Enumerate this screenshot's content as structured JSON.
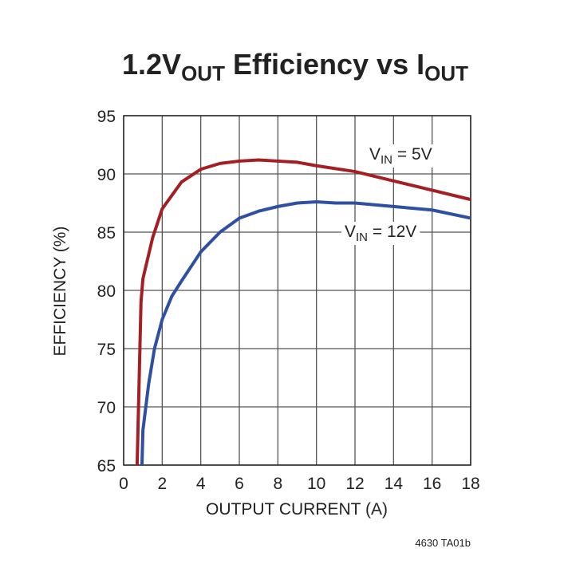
{
  "chart_data": {
    "type": "line",
    "title": [
      "1.2V",
      "OUT",
      " Efficiency vs I",
      "OUT"
    ],
    "x_label": "OUTPUT CURRENT (A)",
    "y_label": "EFFICIENCY (%)",
    "footnote": "4630 TA01b",
    "xlim": [
      0,
      18
    ],
    "xticks": [
      0,
      2,
      4,
      6,
      8,
      10,
      12,
      14,
      16,
      18
    ],
    "ylim": [
      65,
      95
    ],
    "yticks": [
      65,
      70,
      75,
      80,
      85,
      90,
      95
    ],
    "grid": true,
    "series": [
      {
        "name": [
          "V",
          "IN",
          " = 5V"
        ],
        "color": "#a31f24",
        "x": [
          0.7,
          0.8,
          0.9,
          1.0,
          1.5,
          2,
          3,
          4,
          5,
          6,
          7,
          8,
          9,
          10,
          12,
          14,
          16,
          18
        ],
        "values": [
          65,
          72,
          79,
          81,
          84.5,
          87,
          89.3,
          90.4,
          90.9,
          91.1,
          91.2,
          91.1,
          91.0,
          90.7,
          90.2,
          89.4,
          88.6,
          87.8
        ]
      },
      {
        "name": [
          "V",
          "IN",
          " = 12V"
        ],
        "color": "#2f4fa0",
        "x": [
          0.95,
          1.0,
          1.3,
          1.6,
          2,
          2.5,
          3,
          4,
          5,
          6,
          7,
          8,
          9,
          10,
          11,
          12,
          14,
          16,
          18
        ],
        "values": [
          65,
          68,
          72,
          75,
          77.5,
          79.5,
          80.8,
          83.3,
          85.0,
          86.2,
          86.8,
          87.2,
          87.5,
          87.6,
          87.5,
          87.5,
          87.2,
          86.9,
          86.2
        ]
      }
    ]
  }
}
